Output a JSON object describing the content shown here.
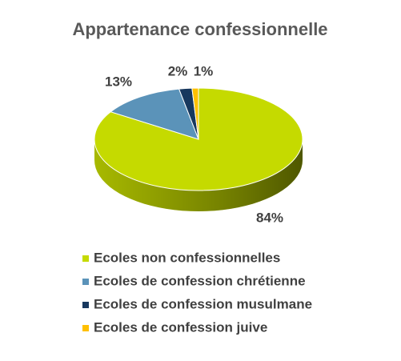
{
  "chart_data": {
    "type": "pie",
    "title": "Appartenance confessionnelle",
    "categories": [
      "Ecoles non confessionnelles",
      "Ecoles de confession chrétienne",
      "Ecoles de confession musulmane",
      "Ecoles de confession juive"
    ],
    "values": [
      84,
      13,
      2,
      1
    ],
    "value_labels": [
      "84%",
      "13%",
      "2%",
      "1%"
    ],
    "colors": [
      "#c5da00",
      "#5b93b9",
      "#17385e",
      "#ffc000"
    ]
  }
}
